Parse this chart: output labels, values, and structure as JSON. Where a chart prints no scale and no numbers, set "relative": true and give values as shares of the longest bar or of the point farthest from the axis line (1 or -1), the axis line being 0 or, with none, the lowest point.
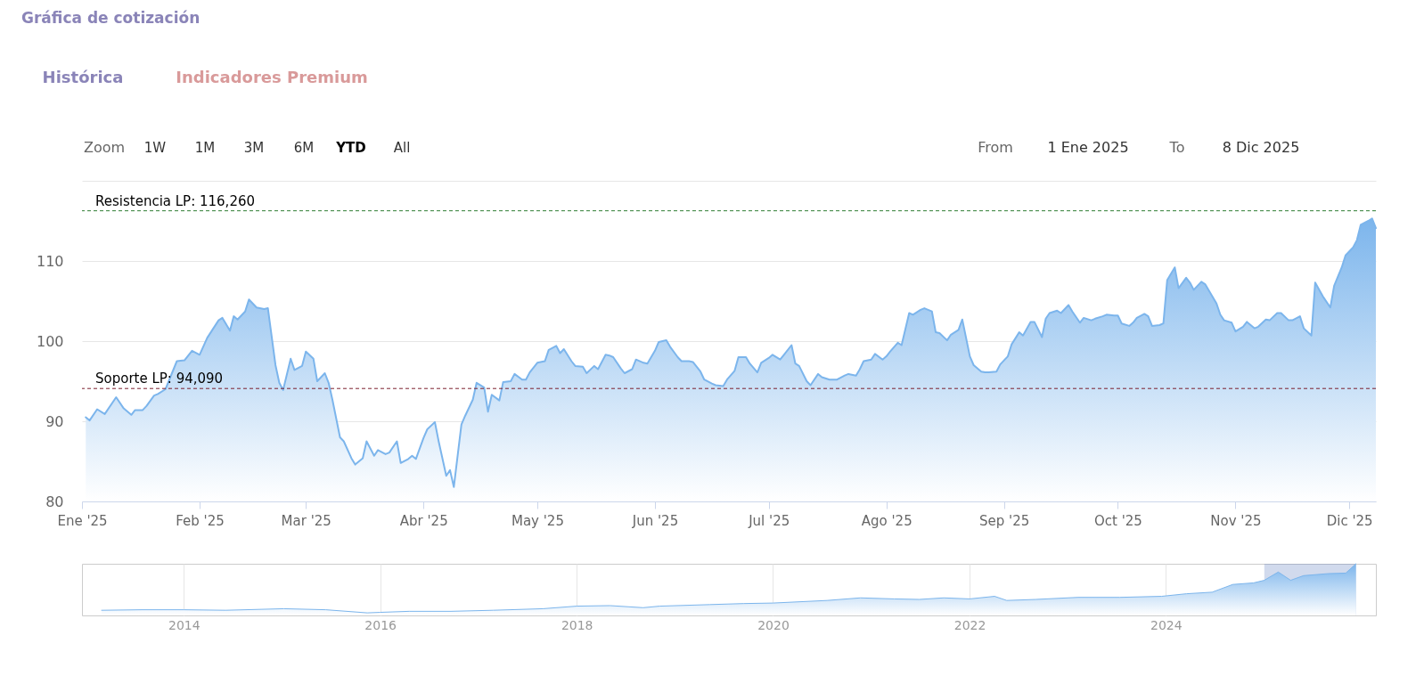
{
  "chart_data": [
    {
      "type": "area",
      "title": "Gráfica de cotización",
      "annotations": [
        "Histórica",
        "Indicadores Premium",
        "Zoom",
        "1W",
        "1M",
        "3M",
        "6M",
        "YTD",
        "All",
        "From",
        "1 Ene 2025",
        "To",
        "8 Dic 2025"
      ],
      "x": [
        "2025-01-02",
        "2025-01-03",
        "2025-01-05",
        "2025-01-07",
        "2025-01-10",
        "2025-01-12",
        "2025-01-14",
        "2025-01-15",
        "2025-01-17",
        "2025-01-18",
        "2025-01-20",
        "2025-01-21",
        "2025-01-23",
        "2025-01-26",
        "2025-01-28",
        "2025-01-30",
        "2025-02-01",
        "2025-02-03",
        "2025-02-06",
        "2025-02-07",
        "2025-02-09",
        "2025-02-10",
        "2025-02-11",
        "2025-02-13",
        "2025-02-14",
        "2025-02-16",
        "2025-02-18",
        "2025-02-19",
        "2025-02-21",
        "2025-02-22",
        "2025-02-23",
        "2025-02-25",
        "2025-02-26",
        "2025-02-28",
        "2025-03-01",
        "2025-03-03",
        "2025-03-04",
        "2025-03-06",
        "2025-03-07",
        "2025-03-08",
        "2025-03-10",
        "2025-03-11",
        "2025-03-13",
        "2025-03-14",
        "2025-03-16",
        "2025-03-17",
        "2025-03-19",
        "2025-03-20",
        "2025-03-22",
        "2025-03-23",
        "2025-03-25",
        "2025-03-26",
        "2025-03-28",
        "2025-03-29",
        "2025-03-30",
        "2025-04-01",
        "2025-04-02",
        "2025-04-04",
        "2025-04-05",
        "2025-04-07",
        "2025-04-08",
        "2025-04-09",
        "2025-04-11",
        "2025-04-12",
        "2025-04-14",
        "2025-04-15",
        "2025-04-17",
        "2025-04-18",
        "2025-04-19",
        "2025-04-21",
        "2025-04-22",
        "2025-04-24",
        "2025-04-25",
        "2025-04-27",
        "2025-04-28",
        "2025-04-29",
        "2025-05-01",
        "2025-05-03",
        "2025-05-04",
        "2025-05-06",
        "2025-05-07",
        "2025-05-08",
        "2025-05-10",
        "2025-05-11",
        "2025-05-13",
        "2025-05-14",
        "2025-05-16",
        "2025-05-17",
        "2025-05-19",
        "2025-05-20",
        "2025-05-21",
        "2025-05-23",
        "2025-05-24",
        "2025-05-26",
        "2025-05-27",
        "2025-05-29",
        "2025-05-30",
        "2025-06-01",
        "2025-06-02",
        "2025-06-04",
        "2025-06-05",
        "2025-06-07",
        "2025-06-08",
        "2025-06-10",
        "2025-06-11",
        "2025-06-13",
        "2025-06-14",
        "2025-06-16",
        "2025-06-17",
        "2025-06-19",
        "2025-06-20",
        "2025-06-22",
        "2025-06-23",
        "2025-06-25",
        "2025-06-26",
        "2025-06-28",
        "2025-06-29",
        "2025-07-01",
        "2025-07-02",
        "2025-07-04",
        "2025-07-05",
        "2025-07-07",
        "2025-07-08",
        "2025-07-09",
        "2025-07-11",
        "2025-07-12",
        "2025-07-14",
        "2025-07-15",
        "2025-07-17",
        "2025-07-18",
        "2025-07-19",
        "2025-07-21",
        "2025-07-22",
        "2025-07-24",
        "2025-07-25",
        "2025-07-26",
        "2025-07-28",
        "2025-07-29",
        "2025-07-31",
        "2025-08-01",
        "2025-08-02",
        "2025-08-04",
        "2025-08-05",
        "2025-08-07",
        "2025-08-08",
        "2025-08-10",
        "2025-08-11",
        "2025-08-13",
        "2025-08-14",
        "2025-08-15",
        "2025-08-17",
        "2025-08-18",
        "2025-08-20",
        "2025-08-21",
        "2025-08-23",
        "2025-08-24",
        "2025-08-26",
        "2025-08-27",
        "2025-08-28",
        "2025-08-30",
        "2025-08-31",
        "2025-09-02",
        "2025-09-03",
        "2025-09-05",
        "2025-09-06",
        "2025-09-08",
        "2025-09-09",
        "2025-09-11",
        "2025-09-12",
        "2025-09-13",
        "2025-09-15",
        "2025-09-16",
        "2025-09-18",
        "2025-09-19",
        "2025-09-21",
        "2025-09-22",
        "2025-09-24",
        "2025-09-25",
        "2025-09-27",
        "2025-09-28",
        "2025-09-30",
        "2025-10-01",
        "2025-10-02",
        "2025-10-04",
        "2025-10-05",
        "2025-10-06",
        "2025-10-08",
        "2025-10-09",
        "2025-10-10",
        "2025-10-12",
        "2025-10-13",
        "2025-10-14",
        "2025-10-16",
        "2025-10-17",
        "2025-10-19",
        "2025-10-20",
        "2025-10-21",
        "2025-10-23",
        "2025-10-24",
        "2025-10-25",
        "2025-10-27",
        "2025-10-28",
        "2025-10-29",
        "2025-10-31",
        "2025-11-01",
        "2025-11-03",
        "2025-11-04",
        "2025-11-06",
        "2025-11-07",
        "2025-11-09",
        "2025-11-10",
        "2025-11-12",
        "2025-11-13",
        "2025-11-15",
        "2025-11-16",
        "2025-11-18",
        "2025-11-19",
        "2025-11-21",
        "2025-11-22",
        "2025-11-24",
        "2025-11-26",
        "2025-11-27",
        "2025-11-29",
        "2025-11-30",
        "2025-12-02",
        "2025-12-03",
        "2025-12-04",
        "2025-12-06",
        "2025-12-07",
        "2025-12-08"
      ],
      "series": [
        {
          "color": "#7cb5ec",
          "values": [
            90.5,
            90.1,
            91.5,
            90.9,
            93.0,
            91.6,
            90.8,
            91.4,
            91.4,
            91.9,
            93.2,
            93.4,
            94.0,
            97.5,
            97.6,
            98.8,
            98.3,
            100.4,
            102.6,
            102.9,
            101.3,
            103.1,
            102.7,
            103.7,
            105.2,
            104.2,
            104.0,
            104.1,
            97.0,
            94.8,
            93.9,
            97.8,
            96.4,
            96.9,
            98.7,
            97.8,
            95.0,
            96.0,
            94.8,
            92.7,
            88.0,
            87.5,
            85.4,
            84.6,
            85.4,
            87.5,
            85.7,
            86.4,
            85.9,
            86.1,
            87.5,
            84.8,
            85.3,
            85.7,
            85.3,
            87.9,
            89.0,
            89.9,
            87.5,
            83.2,
            83.9,
            81.8,
            89.6,
            90.7,
            92.7,
            94.8,
            94.2,
            91.2,
            93.3,
            92.6,
            94.9,
            95.0,
            95.9,
            95.2,
            95.2,
            96.1,
            97.3,
            97.5,
            98.9,
            99.4,
            98.5,
            99.0,
            97.5,
            96.9,
            96.8,
            96.0,
            96.9,
            96.5,
            98.3,
            98.2,
            98.0,
            96.6,
            96.0,
            96.5,
            97.7,
            97.3,
            97.2,
            98.8,
            99.9,
            100.1,
            99.3,
            98.0,
            97.5,
            97.5,
            97.4,
            96.2,
            95.2,
            94.7,
            94.5,
            94.4,
            95.2,
            96.3,
            98.0,
            98.0,
            97.2,
            96.1,
            97.3,
            97.9,
            98.3,
            97.7,
            98.3,
            99.5,
            97.2,
            96.9,
            95.0,
            94.5,
            95.9,
            95.5,
            95.2,
            95.2,
            95.2,
            95.7,
            95.9,
            95.7,
            96.5,
            97.5,
            97.7,
            98.4,
            97.7,
            98.1,
            98.7,
            99.8,
            99.5,
            103.5,
            103.3,
            103.9,
            104.1,
            103.7,
            101.1,
            101.0,
            100.1,
            100.8,
            101.4,
            102.7,
            98.1,
            97.0,
            96.2,
            96.1,
            96.1,
            96.2,
            97.1,
            98.1,
            99.6,
            101.1,
            100.7,
            102.4,
            102.4,
            100.5,
            102.8,
            103.5,
            103.8,
            103.5,
            104.5,
            103.7,
            102.3,
            102.9,
            102.6,
            102.8,
            103.1,
            103.3,
            103.2,
            103.2,
            102.2,
            101.9,
            102.3,
            102.9,
            103.4,
            103.1,
            101.9,
            102.0,
            102.2,
            107.6,
            109.2,
            106.6,
            107.9,
            107.3,
            106.4,
            107.4,
            107.1,
            106.3,
            104.7,
            103.3,
            102.6,
            102.3,
            101.2,
            101.8,
            102.4,
            101.6,
            101.8,
            102.7,
            102.6,
            103.5,
            103.5,
            102.6,
            102.6,
            103.1,
            101.6,
            100.7,
            107.3,
            105.6,
            104.2,
            106.9,
            109.2,
            110.7,
            111.7,
            112.6,
            114.5,
            115.0,
            115.3,
            114.1
          ]
        }
      ],
      "xlim": [
        "2025-01-01",
        "2025-12-08"
      ],
      "xticks": [
        {
          "value": "2025-01-01",
          "label": "Ene '25"
        },
        {
          "value": "2025-02-01",
          "label": "Feb '25"
        },
        {
          "value": "2025-03-01",
          "label": "Mar '25"
        },
        {
          "value": "2025-04-01",
          "label": "Abr '25"
        },
        {
          "value": "2025-05-01",
          "label": "May '25"
        },
        {
          "value": "2025-06-01",
          "label": "Jun '25"
        },
        {
          "value": "2025-07-01",
          "label": "Jul '25"
        },
        {
          "value": "2025-08-01",
          "label": "Ago '25"
        },
        {
          "value": "2025-09-01",
          "label": "Sep '25"
        },
        {
          "value": "2025-10-01",
          "label": "Oct '25"
        },
        {
          "value": "2025-11-01",
          "label": "Nov '25"
        },
        {
          "value": "2025-12-01",
          "label": "Dic '25"
        }
      ],
      "ylim": [
        80,
        120
      ],
      "yticks": [
        80,
        90,
        100,
        110,
        {
          "value": 120,
          "label": null
        }
      ],
      "grid": "y",
      "ref_lines": [
        {
          "axis": "y",
          "value": 116.26,
          "label": "Resistencia LP: 116,260",
          "color": "#2e7d32",
          "line_style": "dashed"
        },
        {
          "axis": "y",
          "value": 94.09,
          "label": "Soporte LP: 94,090",
          "color": "#7b1f2e",
          "line_style": "dashed"
        }
      ]
    },
    {
      "type": "area",
      "relative": true,
      "x": [
        "2013-03-01",
        "2013-07-28",
        "2014-01-01",
        "2014-06-05",
        "2015-01-08",
        "2015-06-13",
        "2015-11-14",
        "2016-01-01",
        "2016-04-18",
        "2016-09-20",
        "2017-02-24",
        "2017-08-28",
        "2018-01-01",
        "2018-05-05",
        "2018-09-05",
        "2018-11-06",
        "2019-05-11",
        "2019-09-13",
        "2020-01-01",
        "2020-07-20",
        "2020-11-21",
        "2021-03-26",
        "2021-06-28",
        "2021-09-27",
        "2022-01-01",
        "2022-04-04",
        "2022-05-19",
        "2022-09-04",
        "2023-02-09",
        "2023-07-13",
        "2023-12-16",
        "2024-03-18",
        "2024-06-21",
        "2024-09-06",
        "2024-11-22",
        "2025-01-01",
        "2025-02-22",
        "2025-04-09",
        "2025-05-27",
        "2025-08-28",
        "2025-10-31",
        "2025-12-08"
      ],
      "series": [
        {
          "color": "#7cb5ec",
          "values": [
            0.1,
            0.11,
            0.11,
            0.1,
            0.13,
            0.11,
            0.05,
            0.06,
            0.08,
            0.08,
            0.1,
            0.13,
            0.18,
            0.19,
            0.15,
            0.18,
            0.21,
            0.23,
            0.24,
            0.29,
            0.34,
            0.32,
            0.31,
            0.34,
            0.32,
            0.37,
            0.29,
            0.31,
            0.35,
            0.35,
            0.37,
            0.42,
            0.45,
            0.6,
            0.63,
            0.68,
            0.84,
            0.68,
            0.77,
            0.81,
            0.82,
            1.0
          ]
        }
      ],
      "xlim": [
        "2012-12-18",
        "2026-02-20"
      ],
      "xticks": [
        "2014",
        "2016",
        "2018",
        "2020",
        "2022",
        "2024"
      ],
      "grid": "x",
      "bands": [
        {
          "axis": "x",
          "from": "2025-01-01",
          "to": "2025-12-08",
          "color": "#6685c2"
        }
      ]
    }
  ]
}
